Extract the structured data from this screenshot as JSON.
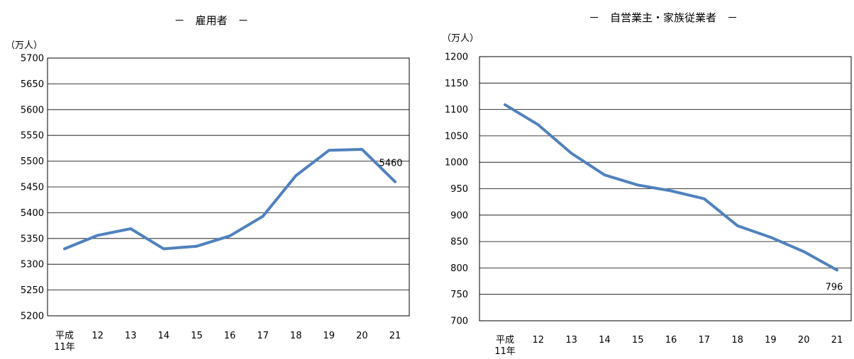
{
  "chart_data": [
    {
      "type": "line",
      "title": "－　雇用者　－",
      "unit": "（万人）",
      "categories": [
        [
          "平成",
          "11年"
        ],
        [
          "12"
        ],
        [
          "13"
        ],
        [
          "14"
        ],
        [
          "15"
        ],
        [
          "16"
        ],
        [
          "17"
        ],
        [
          "18"
        ],
        [
          "19"
        ],
        [
          "20"
        ],
        [
          "21"
        ]
      ],
      "values": [
        5330,
        5356,
        5369,
        5330,
        5335,
        5355,
        5393,
        5472,
        5521,
        5523,
        5460
      ],
      "ylim": [
        5200,
        5700
      ],
      "yticks": [
        5700,
        5650,
        5600,
        5550,
        5500,
        5450,
        5400,
        5350,
        5300,
        5250,
        5200
      ],
      "data_label": "5460",
      "grid": true,
      "line_color": "#4f81bd"
    },
    {
      "type": "line",
      "title": "－　自営業主・家族従業者　－",
      "unit": "（万人）",
      "categories": [
        [
          "平成",
          "11年"
        ],
        [
          "12"
        ],
        [
          "13"
        ],
        [
          "14"
        ],
        [
          "15"
        ],
        [
          "16"
        ],
        [
          "17"
        ],
        [
          "18"
        ],
        [
          "19"
        ],
        [
          "20"
        ],
        [
          "21"
        ]
      ],
      "values": [
        1109,
        1071,
        1017,
        976,
        957,
        946,
        931,
        880,
        858,
        831,
        796
      ],
      "ylim": [
        700,
        1200
      ],
      "yticks": [
        1200,
        1150,
        1100,
        1050,
        1000,
        950,
        900,
        850,
        800,
        750,
        700
      ],
      "data_label": "796",
      "grid": true,
      "line_color": "#4f81bd"
    }
  ]
}
